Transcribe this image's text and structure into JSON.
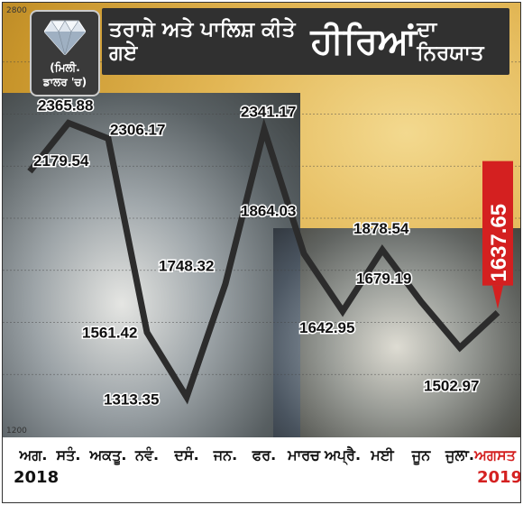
{
  "title": {
    "part1": "ਤਰਾਸ਼ੇ ਅਤੇ ਪਾਲਿਸ਼ ਕੀਤੇ ਗਏ",
    "part2": "ਹੀਰਿਆਂ",
    "part3": "ਦਾ ਨਿਰਯਾਤ"
  },
  "unit": {
    "line1": "(ਮਿਲੀ.",
    "line2": "ਡਾਲਰ 'ਚ)"
  },
  "colors": {
    "line": "#2c2c2c",
    "highlight": "#d42020",
    "banner": "#303030"
  },
  "chart_data": {
    "type": "line",
    "categories": [
      "ਅਗ.",
      "ਸਤੰ.",
      "ਅਕਤੂ.",
      "ਨਵੰ.",
      "ਦਸੰ.",
      "ਜਨ.",
      "ਫਰ.",
      "ਮਾਰਚ",
      "ਅਪ੍ਰੈ.",
      "ਮਈ",
      "ਜੂਨ",
      "ਜੁਲਾ.",
      "ਅਗਸਤ"
    ],
    "values": [
      2179.54,
      2365.88,
      2306.17,
      1561.42,
      1313.35,
      1748.32,
      2341.17,
      1864.03,
      1642.95,
      1878.54,
      1679.19,
      1502.97,
      1637.65
    ],
    "data_labels": [
      "2179.54",
      "2365.88",
      "2306.17",
      "1561.42",
      "1313.35",
      "1748.32",
      "2341.17",
      "1864.03",
      "1642.95",
      "1878.54",
      "1679.19",
      "1502.97",
      "1637.65"
    ],
    "ylim": [
      1200,
      2800
    ],
    "yticks": [
      "2800",
      "1200"
    ],
    "years": [
      "2018",
      "2019"
    ],
    "highlight_last": true,
    "grid": true
  }
}
